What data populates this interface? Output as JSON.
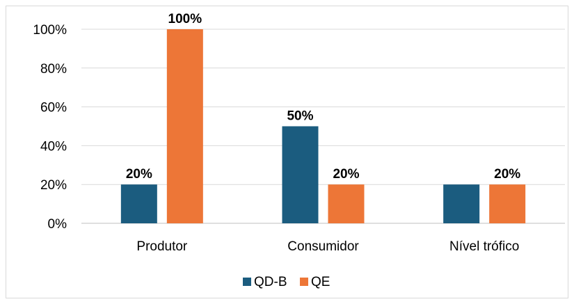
{
  "chart_data": {
    "type": "bar",
    "categories": [
      "Produtor",
      "Consumidor",
      "Nível trófico"
    ],
    "series": [
      {
        "name": "QD-B",
        "values": [
          20,
          50,
          20
        ],
        "color": "#1b5c7f",
        "data_labels": [
          "20%",
          "50%",
          null
        ]
      },
      {
        "name": "QE",
        "values": [
          100,
          20,
          20
        ],
        "color": "#ed7637",
        "data_labels": [
          "100%",
          "20%",
          "20%"
        ]
      }
    ],
    "ylim": [
      0,
      100
    ],
    "yticks": [
      0,
      20,
      40,
      60,
      80,
      100
    ],
    "ytick_labels": [
      "0%",
      "20%",
      "40%",
      "60%",
      "80%",
      "100%"
    ],
    "grid": true,
    "legend_position": "bottom",
    "title": "",
    "xlabel": "",
    "ylabel": ""
  }
}
